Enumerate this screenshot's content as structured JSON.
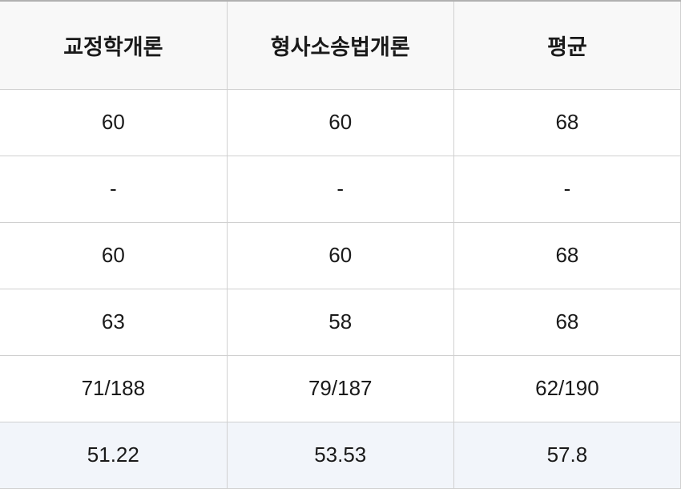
{
  "table": {
    "columns": [
      "교정학개론",
      "형사소송법개론",
      "평균"
    ],
    "rows": [
      [
        "60",
        "60",
        "68"
      ],
      [
        "-",
        "-",
        "-"
      ],
      [
        "60",
        "60",
        "68"
      ],
      [
        "63",
        "58",
        "68"
      ],
      [
        "71/188",
        "79/187",
        "62/190"
      ],
      [
        "51.22",
        "53.53",
        "57.8"
      ]
    ],
    "header_bg_color": "#f8f8f8",
    "highlight_bg_color": "#f2f5fa",
    "border_color": "#d0d0d0",
    "text_color": "#1a1a1a",
    "header_fontsize": 27,
    "cell_fontsize": 26,
    "highlight_row_index": 5
  }
}
